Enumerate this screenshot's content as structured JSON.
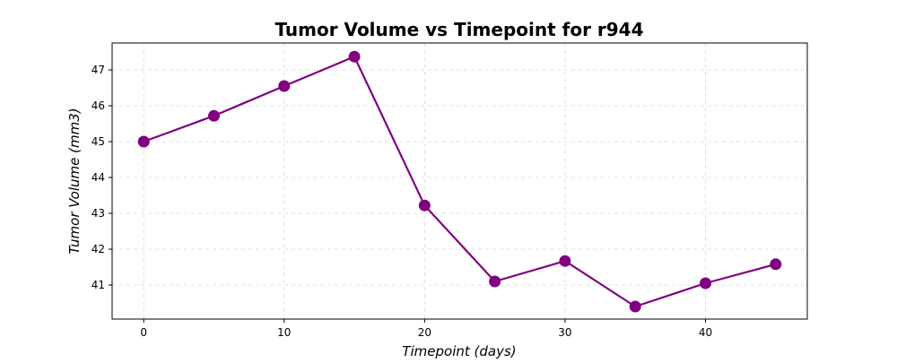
{
  "chart_data": {
    "type": "line",
    "title": "Tumor Volume vs Timepoint for r944",
    "xlabel": "Timepoint (days)",
    "ylabel": "Tumor Volume (mm3)",
    "xlim": [
      -2.25,
      47.25
    ],
    "ylim": [
      40.05,
      47.75
    ],
    "xticks": [
      0,
      10,
      20,
      30,
      40
    ],
    "yticks": [
      41,
      42,
      43,
      44,
      45,
      46,
      47
    ],
    "grid": true,
    "line_color": "#800080",
    "series": [
      {
        "x": [
          0,
          5,
          10,
          15,
          20,
          25,
          30,
          35,
          40,
          45
        ],
        "y": [
          45.0,
          45.72,
          46.55,
          47.37,
          43.22,
          41.1,
          41.67,
          40.4,
          41.05,
          41.58
        ]
      }
    ]
  }
}
